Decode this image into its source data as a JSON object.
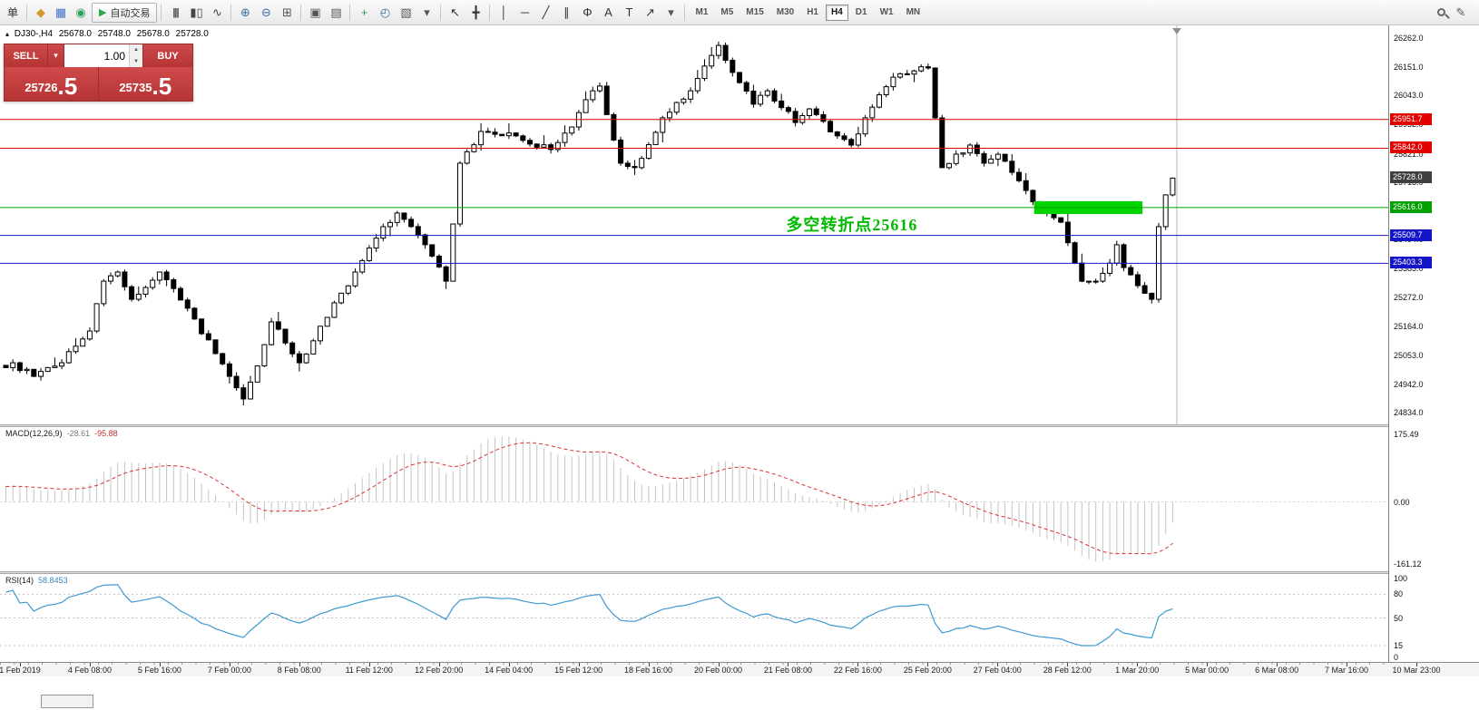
{
  "toolbar": {
    "new_order_label": "单",
    "auto_trading_label": "自动交易",
    "system_icons": [
      {
        "name": "market-watch-icon",
        "glyph": "◆",
        "color": "#cf9a2c"
      },
      {
        "name": "data-window-icon",
        "glyph": "▦",
        "color": "#4472c4"
      },
      {
        "name": "navigator-icon",
        "glyph": "◉",
        "color": "#2e9e5b"
      }
    ],
    "tool_groups": [
      {
        "icons": [
          {
            "name": "bar-chart-icon",
            "glyph": "|||",
            "color": "#444444"
          },
          {
            "name": "candlestick-chart-icon",
            "glyph": "▮▯",
            "color": "#444444"
          },
          {
            "name": "line-chart-icon",
            "glyph": "∿",
            "color": "#444444"
          }
        ]
      },
      {
        "icons": [
          {
            "name": "zoom-in-icon",
            "glyph": "⊕",
            "color": "#3a6ea5"
          },
          {
            "name": "zoom-out-icon",
            "glyph": "⊖",
            "color": "#3a6ea5"
          },
          {
            "name": "tile-windows-icon",
            "glyph": "⊞",
            "color": "#555555"
          }
        ]
      },
      {
        "icons": [
          {
            "name": "arrange-windows-icon",
            "glyph": "▣",
            "color": "#555555"
          },
          {
            "name": "cascade-windows-icon",
            "glyph": "▤",
            "color": "#555555"
          }
        ]
      },
      {
        "icons": [
          {
            "name": "new-chart-icon",
            "glyph": "+",
            "color": "#2e9e5b"
          },
          {
            "name": "clock-icon",
            "glyph": "◴",
            "color": "#3a6ea5"
          },
          {
            "name": "templates-icon",
            "glyph": "▧",
            "color": "#555555"
          },
          {
            "name": "templates-dropdown-icon",
            "glyph": "▾",
            "color": "#555555"
          }
        ]
      },
      {
        "icons": [
          {
            "name": "cursor-icon",
            "glyph": "↖",
            "color": "#333333"
          },
          {
            "name": "crosshair-icon",
            "glyph": "╋",
            "color": "#333333"
          }
        ]
      },
      {
        "icons": [
          {
            "name": "vertical-line-icon",
            "glyph": "│",
            "color": "#333333"
          },
          {
            "name": "horizontal-line-icon",
            "glyph": "─",
            "color": "#333333"
          },
          {
            "name": "trendline-icon",
            "glyph": "╱",
            "color": "#333333"
          },
          {
            "name": "channel-icon",
            "glyph": "∥",
            "color": "#333333"
          },
          {
            "name": "fibonacci-icon",
            "glyph": "Φ",
            "color": "#333333"
          },
          {
            "name": "text-icon",
            "glyph": "A",
            "color": "#333333"
          },
          {
            "name": "label-icon",
            "glyph": "T",
            "color": "#333333"
          },
          {
            "name": "arrows-icon",
            "glyph": "↗",
            "color": "#333333"
          },
          {
            "name": "objects-dropdown-icon",
            "glyph": "▾",
            "color": "#555555"
          }
        ]
      }
    ],
    "timeframes": [
      "M1",
      "M5",
      "M15",
      "M30",
      "H1",
      "H4",
      "D1",
      "W1",
      "MN"
    ],
    "active_timeframe": "H4",
    "right_icons": [
      {
        "name": "search-icon",
        "glyph": "",
        "color": "#555555"
      },
      {
        "name": "pencil-icon",
        "glyph": "✎",
        "color": "#555555"
      }
    ]
  },
  "chart": {
    "marker": "▴",
    "title": "DJ30-,H4",
    "open": "25678.0",
    "high": "25748.0",
    "low": "25678.0",
    "close": "25728.0"
  },
  "trade_panel": {
    "sell_label": "SELL",
    "buy_label": "BUY",
    "volume": "1.00",
    "sell_price_main": "25726",
    "sell_price_frac": ".5",
    "buy_price_main": "25735",
    "buy_price_frac": ".5"
  },
  "annotation": {
    "text": "多空转折点25616",
    "bar": 112,
    "price": 25560,
    "color": "#00bb00"
  },
  "levels": [
    {
      "price": 25951.7,
      "label": "25951.7",
      "color": "#e00000",
      "line": true
    },
    {
      "price": 25842.0,
      "label": "25842.0",
      "color": "#e00000",
      "line": true
    },
    {
      "price": 25728.0,
      "label": "25728.0",
      "color": "#404040",
      "line": false
    },
    {
      "price": 25616.0,
      "label": "25616.0",
      "color": "#00a000",
      "line": true
    },
    {
      "price": 25509.7,
      "label": "25509.7",
      "color": "#1414c8",
      "line": true
    },
    {
      "price": 25403.3,
      "label": "25403.3",
      "color": "#1414c8",
      "line": true
    }
  ],
  "price_axis": {
    "labels": [
      26262.0,
      26151.0,
      26043.0,
      25932.0,
      25821.0,
      25713.0,
      25604.0,
      25494.0,
      25383.0,
      25272.0,
      25164.0,
      25053.0,
      24942.0,
      24834.0
    ]
  },
  "time_axis": {
    "labels": [
      "1 Feb 2019",
      "4 Feb 08:00",
      "5 Feb 16:00",
      "7 Feb 00:00",
      "8 Feb 08:00",
      "11 Feb 12:00",
      "12 Feb 20:00",
      "14 Feb 04:00",
      "15 Feb 12:00",
      "18 Feb 16:00",
      "20 Feb 00:00",
      "21 Feb 08:00",
      "22 Feb 16:00",
      "25 Feb 20:00",
      "27 Feb 04:00",
      "28 Feb 12:00",
      "1 Mar 20:00",
      "5 Mar 00:00",
      "6 Mar 08:00",
      "7 Mar 16:00",
      "10 Mar 23:00"
    ]
  },
  "macd": {
    "label": "MACD(12,26,9)",
    "value_main": "-28.61",
    "value_signal": "-95.88",
    "axis_labels": [
      {
        "t": "175.49",
        "v": 175.49
      },
      {
        "t": "0.00",
        "v": 0
      },
      {
        "t": "-161.12",
        "v": -161.12
      }
    ],
    "axis_max": 175.49,
    "axis_min": -161.12,
    "histogram_color": "#c4c4c4",
    "signal_color": "#e03030"
  },
  "rsi": {
    "label": "RSI(14)",
    "value": "58.8453",
    "axis_labels": [
      {
        "t": "100",
        "v": 100
      },
      {
        "t": "80",
        "v": 80
      },
      {
        "t": "50",
        "v": 50
      },
      {
        "t": "15",
        "v": 15
      },
      {
        "t": "0",
        "v": 0
      }
    ],
    "levels": [
      80,
      50,
      15
    ],
    "line_color": "#3d9ad2"
  },
  "chart_data": {
    "type": "candlestick",
    "symbol": "DJ30-",
    "timeframe": "H4",
    "bar_count": 168,
    "y_range": [
      24834,
      26262
    ],
    "last_close": 25728.0,
    "price_anchors": [
      [
        -30,
        24800
      ],
      [
        -12,
        24950
      ],
      [
        1,
        25024
      ],
      [
        4,
        24972
      ],
      [
        8,
        25024
      ],
      [
        12,
        25145
      ],
      [
        14,
        25335
      ],
      [
        16,
        25370
      ],
      [
        18,
        25266
      ],
      [
        22,
        25370
      ],
      [
        26,
        25232
      ],
      [
        30,
        25059
      ],
      [
        34,
        24886
      ],
      [
        37,
        25093
      ],
      [
        38,
        25180
      ],
      [
        42,
        25024
      ],
      [
        46,
        25197
      ],
      [
        50,
        25370
      ],
      [
        54,
        25543
      ],
      [
        56,
        25595
      ],
      [
        60,
        25474
      ],
      [
        63,
        25335
      ],
      [
        65,
        25785
      ],
      [
        68,
        25906
      ],
      [
        73,
        25889
      ],
      [
        78,
        25837
      ],
      [
        81,
        25923
      ],
      [
        84,
        26061
      ],
      [
        85,
        26079
      ],
      [
        88,
        25785
      ],
      [
        90,
        25768
      ],
      [
        94,
        25958
      ],
      [
        98,
        26061
      ],
      [
        102,
        26234
      ],
      [
        104,
        26131
      ],
      [
        107,
        26010
      ],
      [
        109,
        26061
      ],
      [
        113,
        25940
      ],
      [
        115,
        25992
      ],
      [
        119,
        25889
      ],
      [
        121,
        25854
      ],
      [
        123,
        25958
      ],
      [
        127,
        26113
      ],
      [
        130,
        26137
      ],
      [
        132,
        26148
      ],
      [
        134,
        25768
      ],
      [
        138,
        25854
      ],
      [
        140,
        25785
      ],
      [
        142,
        25819
      ],
      [
        144,
        25750
      ],
      [
        146,
        25681
      ],
      [
        148,
        25612
      ],
      [
        150,
        25577
      ],
      [
        151,
        25560
      ],
      [
        153,
        25404
      ],
      [
        154,
        25335
      ],
      [
        156,
        25335
      ],
      [
        158,
        25404
      ],
      [
        159,
        25474
      ],
      [
        160,
        25387
      ],
      [
        162,
        25318
      ],
      [
        164,
        25266
      ],
      [
        165,
        25543
      ],
      [
        166,
        25664
      ],
      [
        167,
        25728
      ]
    ],
    "green_zone": {
      "bar_from": 147.5,
      "bar_to": 163,
      "price_from": 25591,
      "price_to": 25640,
      "color": "#00d300"
    }
  }
}
